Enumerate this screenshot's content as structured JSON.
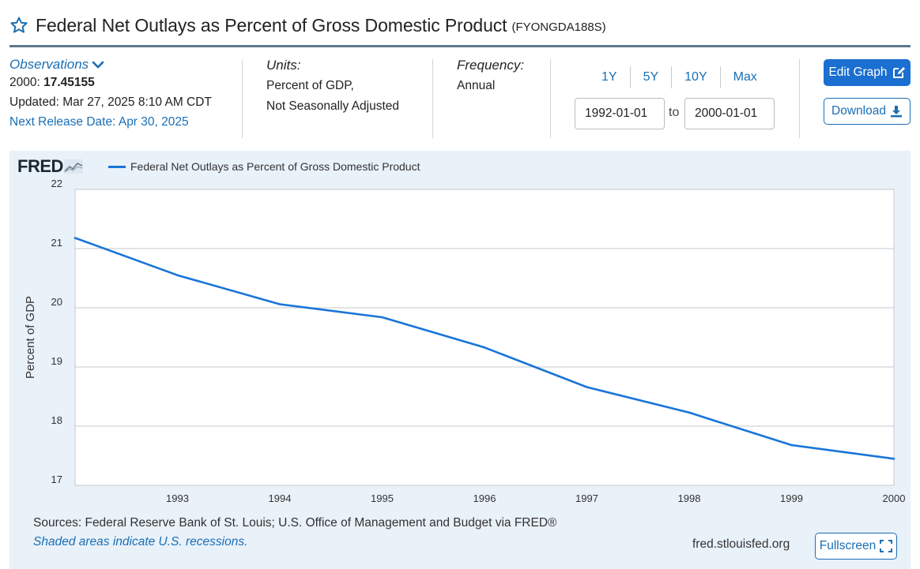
{
  "header": {
    "title": "Federal Net Outlays as Percent of Gross Domestic Product",
    "series_id": "(FYONGDA188S)"
  },
  "observations": {
    "label": "Observations",
    "latest_prefix": "2000: ",
    "latest_value": "17.45155",
    "updated": "Updated: Mar 27, 2025 8:10 AM CDT",
    "next_release": "Next Release Date: Apr 30, 2025"
  },
  "units": {
    "label": "Units:",
    "line1": "Percent of GDP,",
    "line2": "Not Seasonally Adjusted"
  },
  "frequency": {
    "label": "Frequency:",
    "value": "Annual"
  },
  "range": {
    "buttons": [
      "1Y",
      "5Y",
      "10Y",
      "Max"
    ],
    "start": "1992-01-01",
    "to_label": "to",
    "end": "2000-01-01"
  },
  "actions": {
    "edit_label": "Edit Graph",
    "download_label": "Download",
    "fullscreen_label": "Fullscreen"
  },
  "graph": {
    "logo": "FRED",
    "sources": "Sources: Federal Reserve Bank of St. Louis; U.S. Office of Management and Budget via FRED®",
    "recession_note": "Shaded areas indicate U.S. recessions.",
    "site": "fred.stlouisfed.org"
  },
  "colors": {
    "series": "#1975d8",
    "panel_bg": "#e9f1f9",
    "accent": "#1a6fd1"
  },
  "chart_data": {
    "type": "line",
    "title": "",
    "xlabel": "",
    "ylabel": "Percent of GDP",
    "x": [
      1992,
      1993,
      1994,
      1995,
      1996,
      1997,
      1998,
      1999,
      2000
    ],
    "x_tick_labels": [
      "1993",
      "1994",
      "1995",
      "1996",
      "1997",
      "1998",
      "1999",
      "2000"
    ],
    "y_ticks": [
      17,
      18,
      19,
      20,
      21,
      22
    ],
    "ylim": [
      17,
      22
    ],
    "xlim": [
      1992,
      2000
    ],
    "grid": true,
    "legend_position": "top-left",
    "series": [
      {
        "name": "Federal Net Outlays as Percent of Gross Domestic Product",
        "values": [
          21.18,
          20.55,
          20.06,
          19.84,
          19.33,
          18.66,
          18.23,
          17.68,
          17.45
        ]
      }
    ]
  }
}
